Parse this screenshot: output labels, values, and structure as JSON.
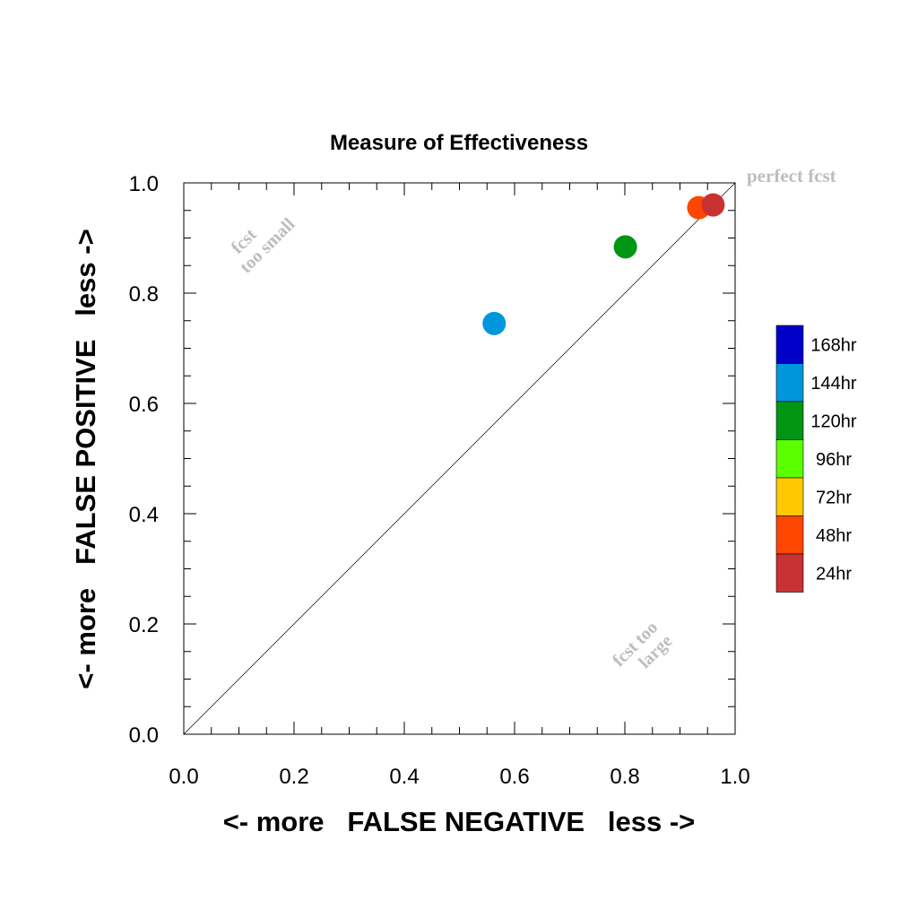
{
  "chart_data": {
    "type": "scatter",
    "title": "Measure of Effectiveness",
    "xlabel": "<- more   FALSE NEGATIVE   less ->",
    "ylabel": "<- more   FALSE POSITIVE   less ->",
    "xlim": [
      0.0,
      1.0
    ],
    "ylim": [
      0.0,
      1.0
    ],
    "x_ticks": [
      "0.0",
      "0.2",
      "0.4",
      "0.6",
      "0.8",
      "1.0"
    ],
    "y_ticks": [
      "0.0",
      "0.2",
      "0.4",
      "0.6",
      "0.8",
      "1.0"
    ],
    "grid": false,
    "legend_position": "right",
    "legend": [
      {
        "label": "168hr",
        "color": "#0000c8"
      },
      {
        "label": "144hr",
        "color": "#0096dc"
      },
      {
        "label": "120hr",
        "color": "#009614"
      },
      {
        "label": "96hr",
        "color": "#5aff00"
      },
      {
        "label": "72hr",
        "color": "#ffc800"
      },
      {
        "label": "48hr",
        "color": "#ff4600"
      },
      {
        "label": "24hr",
        "color": "#c83232"
      }
    ],
    "points": [
      {
        "series": "144hr",
        "x": 0.563,
        "y": 0.745,
        "color": "#0096dc"
      },
      {
        "series": "120hr",
        "x": 0.801,
        "y": 0.884,
        "color": "#009614"
      },
      {
        "series": "48hr",
        "x": 0.934,
        "y": 0.955,
        "color": "#ff4600"
      },
      {
        "series": "24hr",
        "x": 0.96,
        "y": 0.96,
        "color": "#c83232"
      }
    ],
    "reference_line": {
      "x": [
        0.0,
        1.0
      ],
      "y": [
        0.0,
        1.0
      ]
    },
    "annotations": {
      "perfect": "perfect fcst",
      "too_small_line1": "fcst",
      "too_small_line2": "too small",
      "too_large_line1": "fcst too",
      "too_large_line2": "large"
    }
  }
}
